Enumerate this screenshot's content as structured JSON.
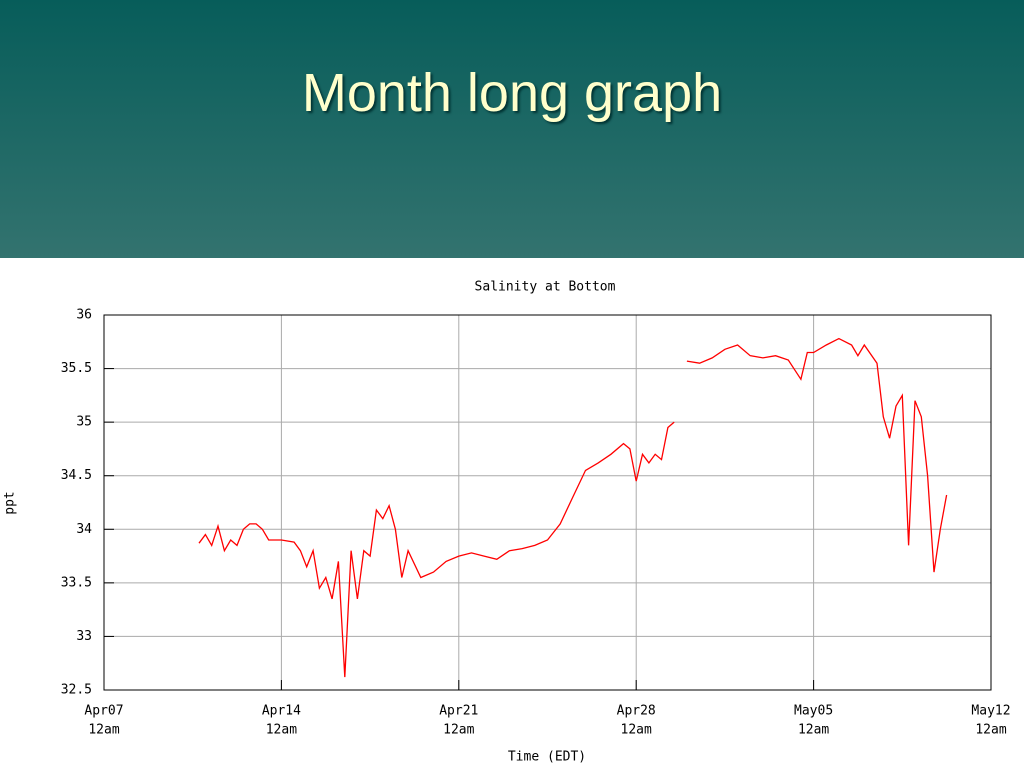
{
  "slide": {
    "title": "Month long graph"
  },
  "chart_data": {
    "type": "line",
    "title": "Salinity at Bottom",
    "x_label": "Time (EDT)",
    "y_label": "ppt",
    "xlim": [
      "04-07 00:00",
      "05-12 00:00"
    ],
    "xticks": [
      {
        "value": "04-07 00:00",
        "label": [
          "Apr07",
          "12am"
        ]
      },
      {
        "value": "04-14 00:00",
        "label": [
          "Apr14",
          "12am"
        ]
      },
      {
        "value": "04-21 00:00",
        "label": [
          "Apr21",
          "12am"
        ]
      },
      {
        "value": "04-28 00:00",
        "label": [
          "Apr28",
          "12am"
        ]
      },
      {
        "value": "05-05 00:00",
        "label": [
          "May05",
          "12am"
        ]
      },
      {
        "value": "05-12 00:00",
        "label": [
          "May12",
          "12am"
        ]
      }
    ],
    "ylim": [
      32.5,
      36
    ],
    "yticks": [
      32.5,
      33,
      33.5,
      34,
      34.5,
      35,
      35.5,
      36
    ],
    "grid": true,
    "x": [
      "04-10 18:00",
      "04-11 00:00",
      "04-11 06:00",
      "04-11 12:00",
      "04-11 18:00",
      "04-12 00:00",
      "04-12 06:00",
      "04-12 12:00",
      "04-12 18:00",
      "04-13 00:00",
      "04-13 06:00",
      "04-13 12:00",
      "04-14 00:00",
      "04-14 12:00",
      "04-14 18:00",
      "04-15 00:00",
      "04-15 06:00",
      "04-15 12:00",
      "04-15 18:00",
      "04-16 00:00",
      "04-16 06:00",
      "04-16 12:00",
      "04-16 18:00",
      "04-17 00:00",
      "04-17 06:00",
      "04-17 12:00",
      "04-17 18:00",
      "04-18 00:00",
      "04-18 06:00",
      "04-18 12:00",
      "04-18 18:00",
      "04-19 00:00",
      "04-19 12:00",
      "04-20 00:00",
      "04-20 12:00",
      "04-21 00:00",
      "04-21 12:00",
      "04-22 00:00",
      "04-22 12:00",
      "04-23 00:00",
      "04-23 12:00",
      "04-24 00:00",
      "04-24 12:00",
      "04-25 00:00",
      "04-25 12:00",
      "04-26 00:00",
      "04-26 12:00",
      "04-27 00:00",
      "04-27 12:00",
      "04-27 18:00",
      "04-28 00:00",
      "04-28 06:00",
      "04-28 12:00",
      "04-28 18:00",
      "04-29 00:00",
      "04-29 06:00",
      "04-29 12:00",
      "04-29 18:00",
      "04-30 00:00",
      "04-30 12:00",
      "05-01 00:00",
      "05-01 12:00",
      "05-02 00:00",
      "05-02 12:00",
      "05-03 00:00",
      "05-03 12:00",
      "05-04 00:00",
      "05-04 12:00",
      "05-04 18:00",
      "05-05 00:00",
      "05-05 12:00",
      "05-06 00:00",
      "05-06 12:00",
      "05-06 18:00",
      "05-07 00:00",
      "05-07 12:00",
      "05-07 18:00",
      "05-08 00:00",
      "05-08 06:00",
      "05-08 12:00",
      "05-08 18:00",
      "05-09 00:00",
      "05-09 06:00",
      "05-09 12:00",
      "05-09 18:00",
      "05-10 00:00",
      "05-10 06:00"
    ],
    "series": [
      {
        "name": "Salinity",
        "color": "#ff0000",
        "values": [
          33.87,
          33.95,
          33.85,
          34.03,
          33.8,
          33.9,
          33.85,
          34.0,
          34.05,
          34.05,
          34.0,
          33.9,
          33.9,
          33.88,
          33.8,
          33.65,
          33.8,
          33.45,
          33.55,
          33.35,
          33.7,
          32.62,
          33.8,
          33.35,
          33.8,
          33.75,
          34.18,
          34.1,
          34.22,
          34.0,
          33.55,
          33.8,
          33.55,
          33.6,
          33.7,
          33.75,
          33.78,
          33.75,
          33.72,
          33.8,
          33.82,
          33.85,
          33.9,
          34.05,
          34.3,
          34.55,
          34.62,
          34.7,
          34.8,
          34.75,
          34.45,
          34.7,
          34.62,
          34.7,
          34.65,
          34.95,
          35.0,
          null,
          35.57,
          35.55,
          35.6,
          35.68,
          35.72,
          35.62,
          35.6,
          35.62,
          35.58,
          35.4,
          35.65,
          35.65,
          35.72,
          35.78,
          35.72,
          35.62,
          35.72,
          35.55,
          35.05,
          34.85,
          35.15,
          35.25,
          33.85,
          35.2,
          35.05,
          34.5,
          33.6,
          34.0,
          34.32
        ]
      }
    ]
  }
}
